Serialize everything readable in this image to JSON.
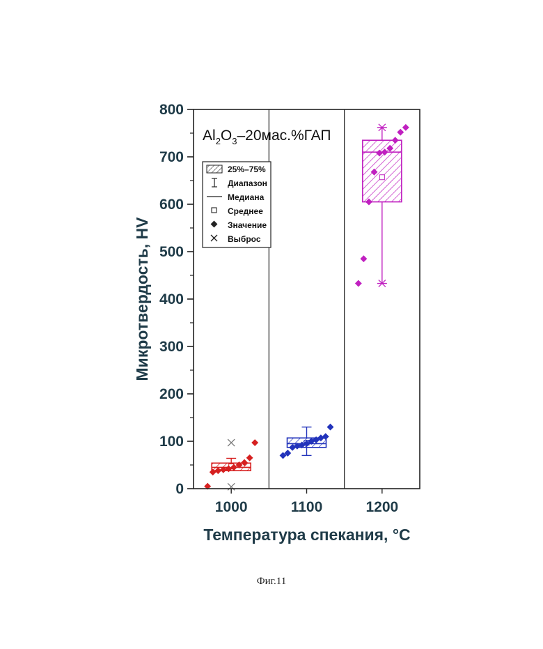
{
  "chart_data": {
    "type": "box",
    "title": {
      "base": "Al",
      "sub1": "2",
      "mid": "O",
      "sub2": "3",
      "rest": "–20мас.%ГАП"
    },
    "xlabel": "Температура спекания, °C",
    "ylabel": "Микротвердость, HV",
    "ylim": [
      0,
      800
    ],
    "yticks": [
      "0",
      "100",
      "200",
      "300",
      "400",
      "500",
      "600",
      "700",
      "800"
    ],
    "categories": [
      "1000",
      "1100",
      "1200"
    ],
    "legend": {
      "position": "top-left",
      "items": [
        "25%–75%",
        "Диапазон",
        "Медиана",
        "Среднее",
        "Значение",
        "Выброс"
      ]
    },
    "series": [
      {
        "category": "1000",
        "color": "#d62020",
        "q1": 38,
        "q3": 54,
        "median": 45,
        "mean": 47,
        "whisker_low": 38,
        "whisker_high": 64,
        "values": [
          5,
          35,
          38,
          40,
          42,
          45,
          50,
          55,
          65,
          97
        ],
        "outliers": [
          4,
          97
        ]
      },
      {
        "category": "1100",
        "color": "#2233bb",
        "q1": 87,
        "q3": 107,
        "median": 95,
        "mean": 97,
        "whisker_low": 70,
        "whisker_high": 130,
        "values": [
          70,
          75,
          87,
          90,
          92,
          95,
          100,
          103,
          107,
          110,
          130
        ],
        "outliers": []
      },
      {
        "category": "1200",
        "color": "#c020c0",
        "q1": 605,
        "q3": 735,
        "median": 710,
        "mean": 657,
        "whisker_low": 433,
        "whisker_high": 762,
        "values": [
          433,
          485,
          605,
          668,
          708,
          710,
          718,
          735,
          752,
          762
        ],
        "outliers": [
          433,
          762
        ]
      }
    ]
  },
  "caption": "Фиг.11"
}
